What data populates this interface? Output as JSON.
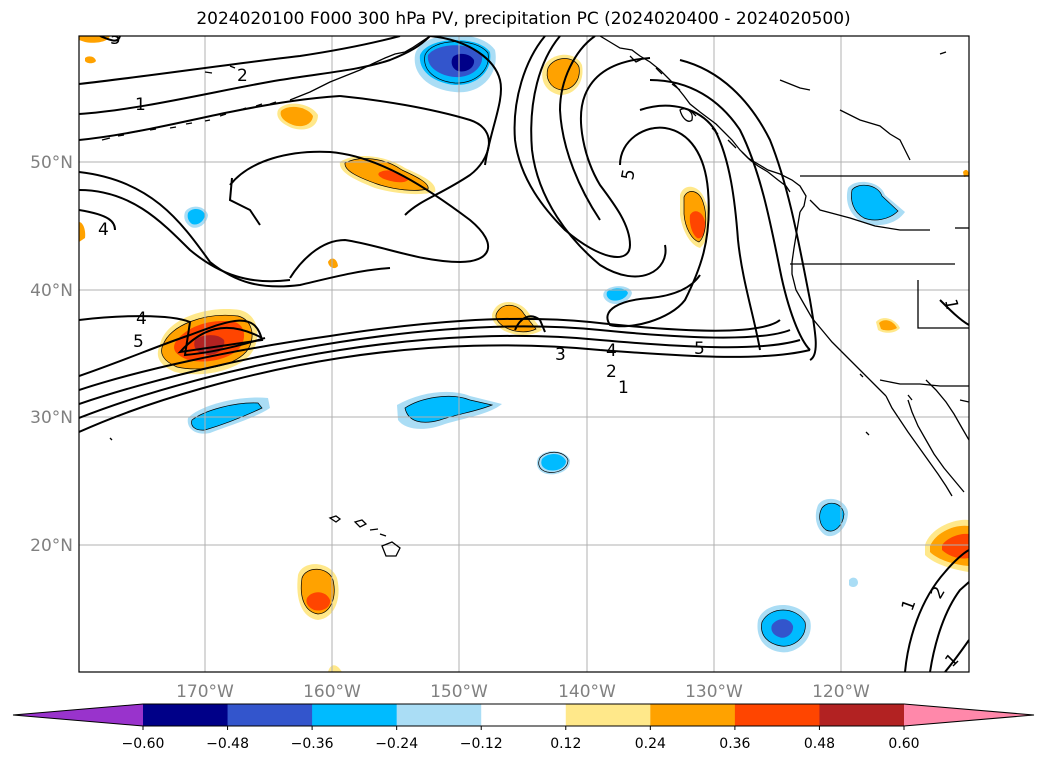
{
  "title": "2024020100 F000 300 hPa PV, precipitation PC (2024020400 - 2024020500)",
  "latitude_labels": [
    "50°N",
    "40°N",
    "30°N",
    "20°N"
  ],
  "longitude_labels": [
    "170°W",
    "160°W",
    "150°W",
    "140°W",
    "130°W",
    "120°W"
  ],
  "colorbar": {
    "tick_labels": [
      "−0.60",
      "−0.48",
      "−0.36",
      "−0.24",
      "−0.12",
      "0.12",
      "0.24",
      "0.36",
      "0.48",
      "0.60"
    ],
    "colors": [
      "#9933cc",
      "#000088",
      "#3355cc",
      "#00bbff",
      "#aaddf5",
      "#ffffff",
      "#ffe88a",
      "#ffa200",
      "#ff4500",
      "#b22222",
      "#ff88aa"
    ],
    "extend": "both"
  },
  "contour_labels": [
    "5",
    "2",
    "1",
    "4",
    "5",
    "4",
    "5",
    "3",
    "4",
    "5",
    "2",
    "1",
    "1",
    "1",
    "2",
    "1"
  ],
  "colors": {
    "contour": "#000000",
    "coastline": "#000000",
    "grid": "#b0b0b0"
  }
}
